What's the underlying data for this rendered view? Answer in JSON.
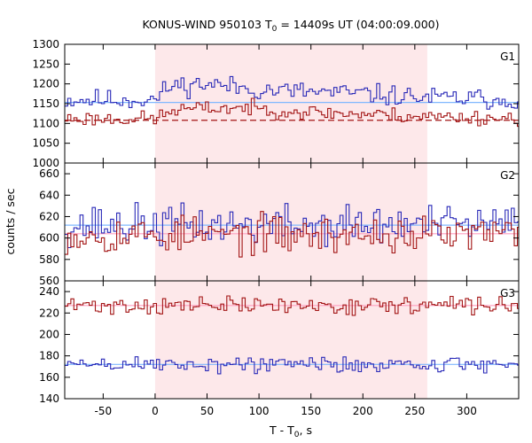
{
  "chart_data": {
    "type": "line",
    "title": {
      "main": "KONUS-WIND 950103 T",
      "sub": "0",
      "rest": " = 14409s UT (04:00:09.000)"
    },
    "xlabel": {
      "main": "T - T",
      "sub": "0",
      "rest": ", s"
    },
    "ylabel": "counts / sec",
    "xlim": [
      -87,
      350
    ],
    "xticks": [
      "-50",
      "0",
      "50",
      "100",
      "150",
      "200",
      "250",
      "300"
    ],
    "xtick_values": [
      -50,
      0,
      50,
      100,
      150,
      200,
      250,
      300
    ],
    "highlight": {
      "x_start": 0,
      "x_end": 262,
      "color": "#fde8ea"
    },
    "bin_width": 2.944,
    "colors": {
      "blue": "#2a2ab8",
      "red": "#a31515",
      "light_blue": "#7fb8ff",
      "pink": "#ff9fc0"
    },
    "panels": [
      {
        "label": "G1",
        "ylim": [
          1000,
          1300
        ],
        "yticks": [
          "1000",
          "1050",
          "1100",
          "1150",
          "1200",
          "1250",
          "1300"
        ],
        "ytick_values": [
          1000,
          1050,
          1100,
          1150,
          1200,
          1250,
          1300
        ],
        "series": [
          {
            "color": "blue",
            "profile": [
              [
                -87,
                1160
              ],
              [
                0,
                1160
              ],
              [
                15,
                1195
              ],
              [
                50,
                1200
              ],
              [
                100,
                1185
              ],
              [
                150,
                1180
              ],
              [
                200,
                1175
              ],
              [
                262,
                1165
              ],
              [
                350,
                1160
              ]
            ],
            "noise": 22,
            "seed": 11
          },
          {
            "color": "red",
            "profile": [
              [
                -87,
                1112
              ],
              [
                0,
                1112
              ],
              [
                20,
                1135
              ],
              [
                80,
                1140
              ],
              [
                150,
                1128
              ],
              [
                262,
                1118
              ],
              [
                350,
                1112
              ]
            ],
            "noise": 16,
            "seed": 23
          }
        ],
        "baselines": [
          {
            "color": "light_blue",
            "y": 1153,
            "dashed": false
          },
          {
            "color": "red",
            "y": 1108,
            "dashed": true
          }
        ]
      },
      {
        "label": "G2",
        "ylim": [
          560,
          670
        ],
        "yticks": [
          "560",
          "580",
          "600",
          "620",
          "640",
          "660"
        ],
        "ytick_values": [
          560,
          580,
          600,
          620,
          640,
          660
        ],
        "series": [
          {
            "color": "blue",
            "profile": [
              [
                -87,
                612
              ],
              [
                350,
                612
              ]
            ],
            "noise": 16,
            "seed": 37
          },
          {
            "color": "red",
            "profile": [
              [
                -87,
                603
              ],
              [
                350,
                603
              ]
            ],
            "noise": 15,
            "seed": 53
          }
        ],
        "baselines": [
          {
            "color": "light_blue",
            "y": 612,
            "dashed": false
          },
          {
            "color": "pink",
            "y": 604,
            "dashed": false
          }
        ]
      },
      {
        "label": "G3",
        "ylim": [
          140,
          250
        ],
        "yticks": [
          "140",
          "160",
          "180",
          "200",
          "220",
          "240"
        ],
        "ytick_values": [
          140,
          160,
          180,
          200,
          220,
          240
        ],
        "series": [
          {
            "color": "red",
            "profile": [
              [
                -87,
                227
              ],
              [
                350,
                227
              ]
            ],
            "noise": 7,
            "seed": 71
          },
          {
            "color": "blue",
            "profile": [
              [
                -87,
                172
              ],
              [
                350,
                172
              ]
            ],
            "noise": 7,
            "seed": 89
          }
        ],
        "baselines": [
          {
            "color": "pink",
            "y": 227,
            "dashed": false
          },
          {
            "color": "light_blue",
            "y": 172,
            "dashed": false
          }
        ]
      }
    ]
  }
}
